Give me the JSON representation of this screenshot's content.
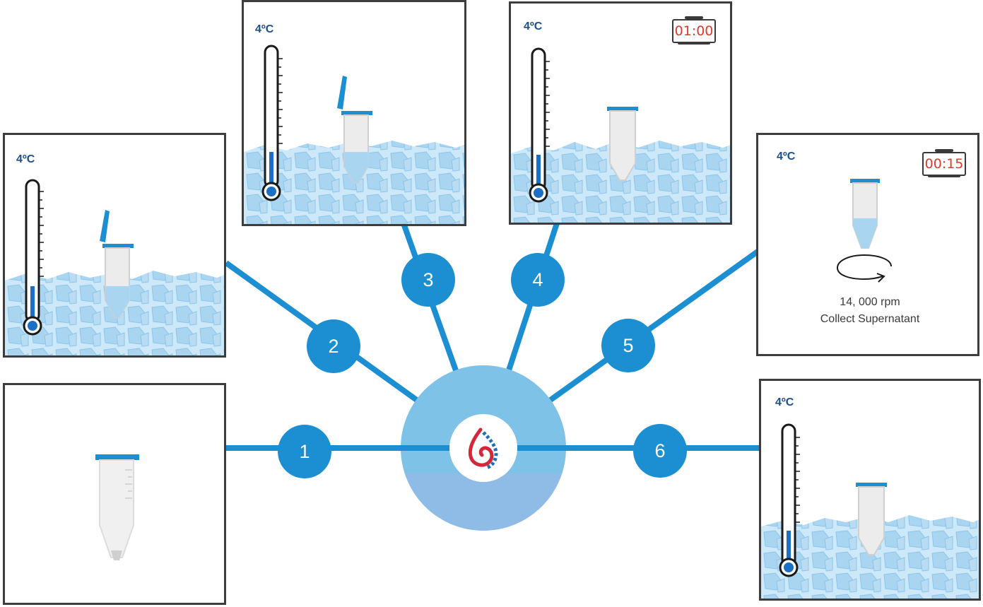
{
  "colors": {
    "connector": "#1b8fd2",
    "hub_outer": "#7fc2e8",
    "hub_lower": "#8fbce6",
    "panel_border": "#3d3d3d",
    "temperature_text": "#1f4e8c",
    "timer_text": "#e03a2e",
    "ice": "#bfe0f5",
    "logo_red": "#d6263a",
    "logo_blue": "#1f6fb8"
  },
  "icons": {
    "hub": "drop-logo-icon",
    "thermometer": "thermometer-icon",
    "tube": "microcentrifuge-tube-icon",
    "ice": "ice-cubes",
    "timer": "timer-icon",
    "rotation": "rotation-arrow-icon"
  },
  "steps": [
    {
      "number": "1"
    },
    {
      "number": "2",
      "temperature": "4ºC"
    },
    {
      "number": "3",
      "temperature": "4ºC"
    },
    {
      "number": "4",
      "temperature": "4ºC",
      "timer": "01:00"
    },
    {
      "number": "5",
      "temperature": "4ºC",
      "timer": "00:15",
      "speed": "14, 000 rpm",
      "instruction": "Collect Supernatant"
    },
    {
      "number": "6",
      "temperature": "4ºC"
    }
  ]
}
